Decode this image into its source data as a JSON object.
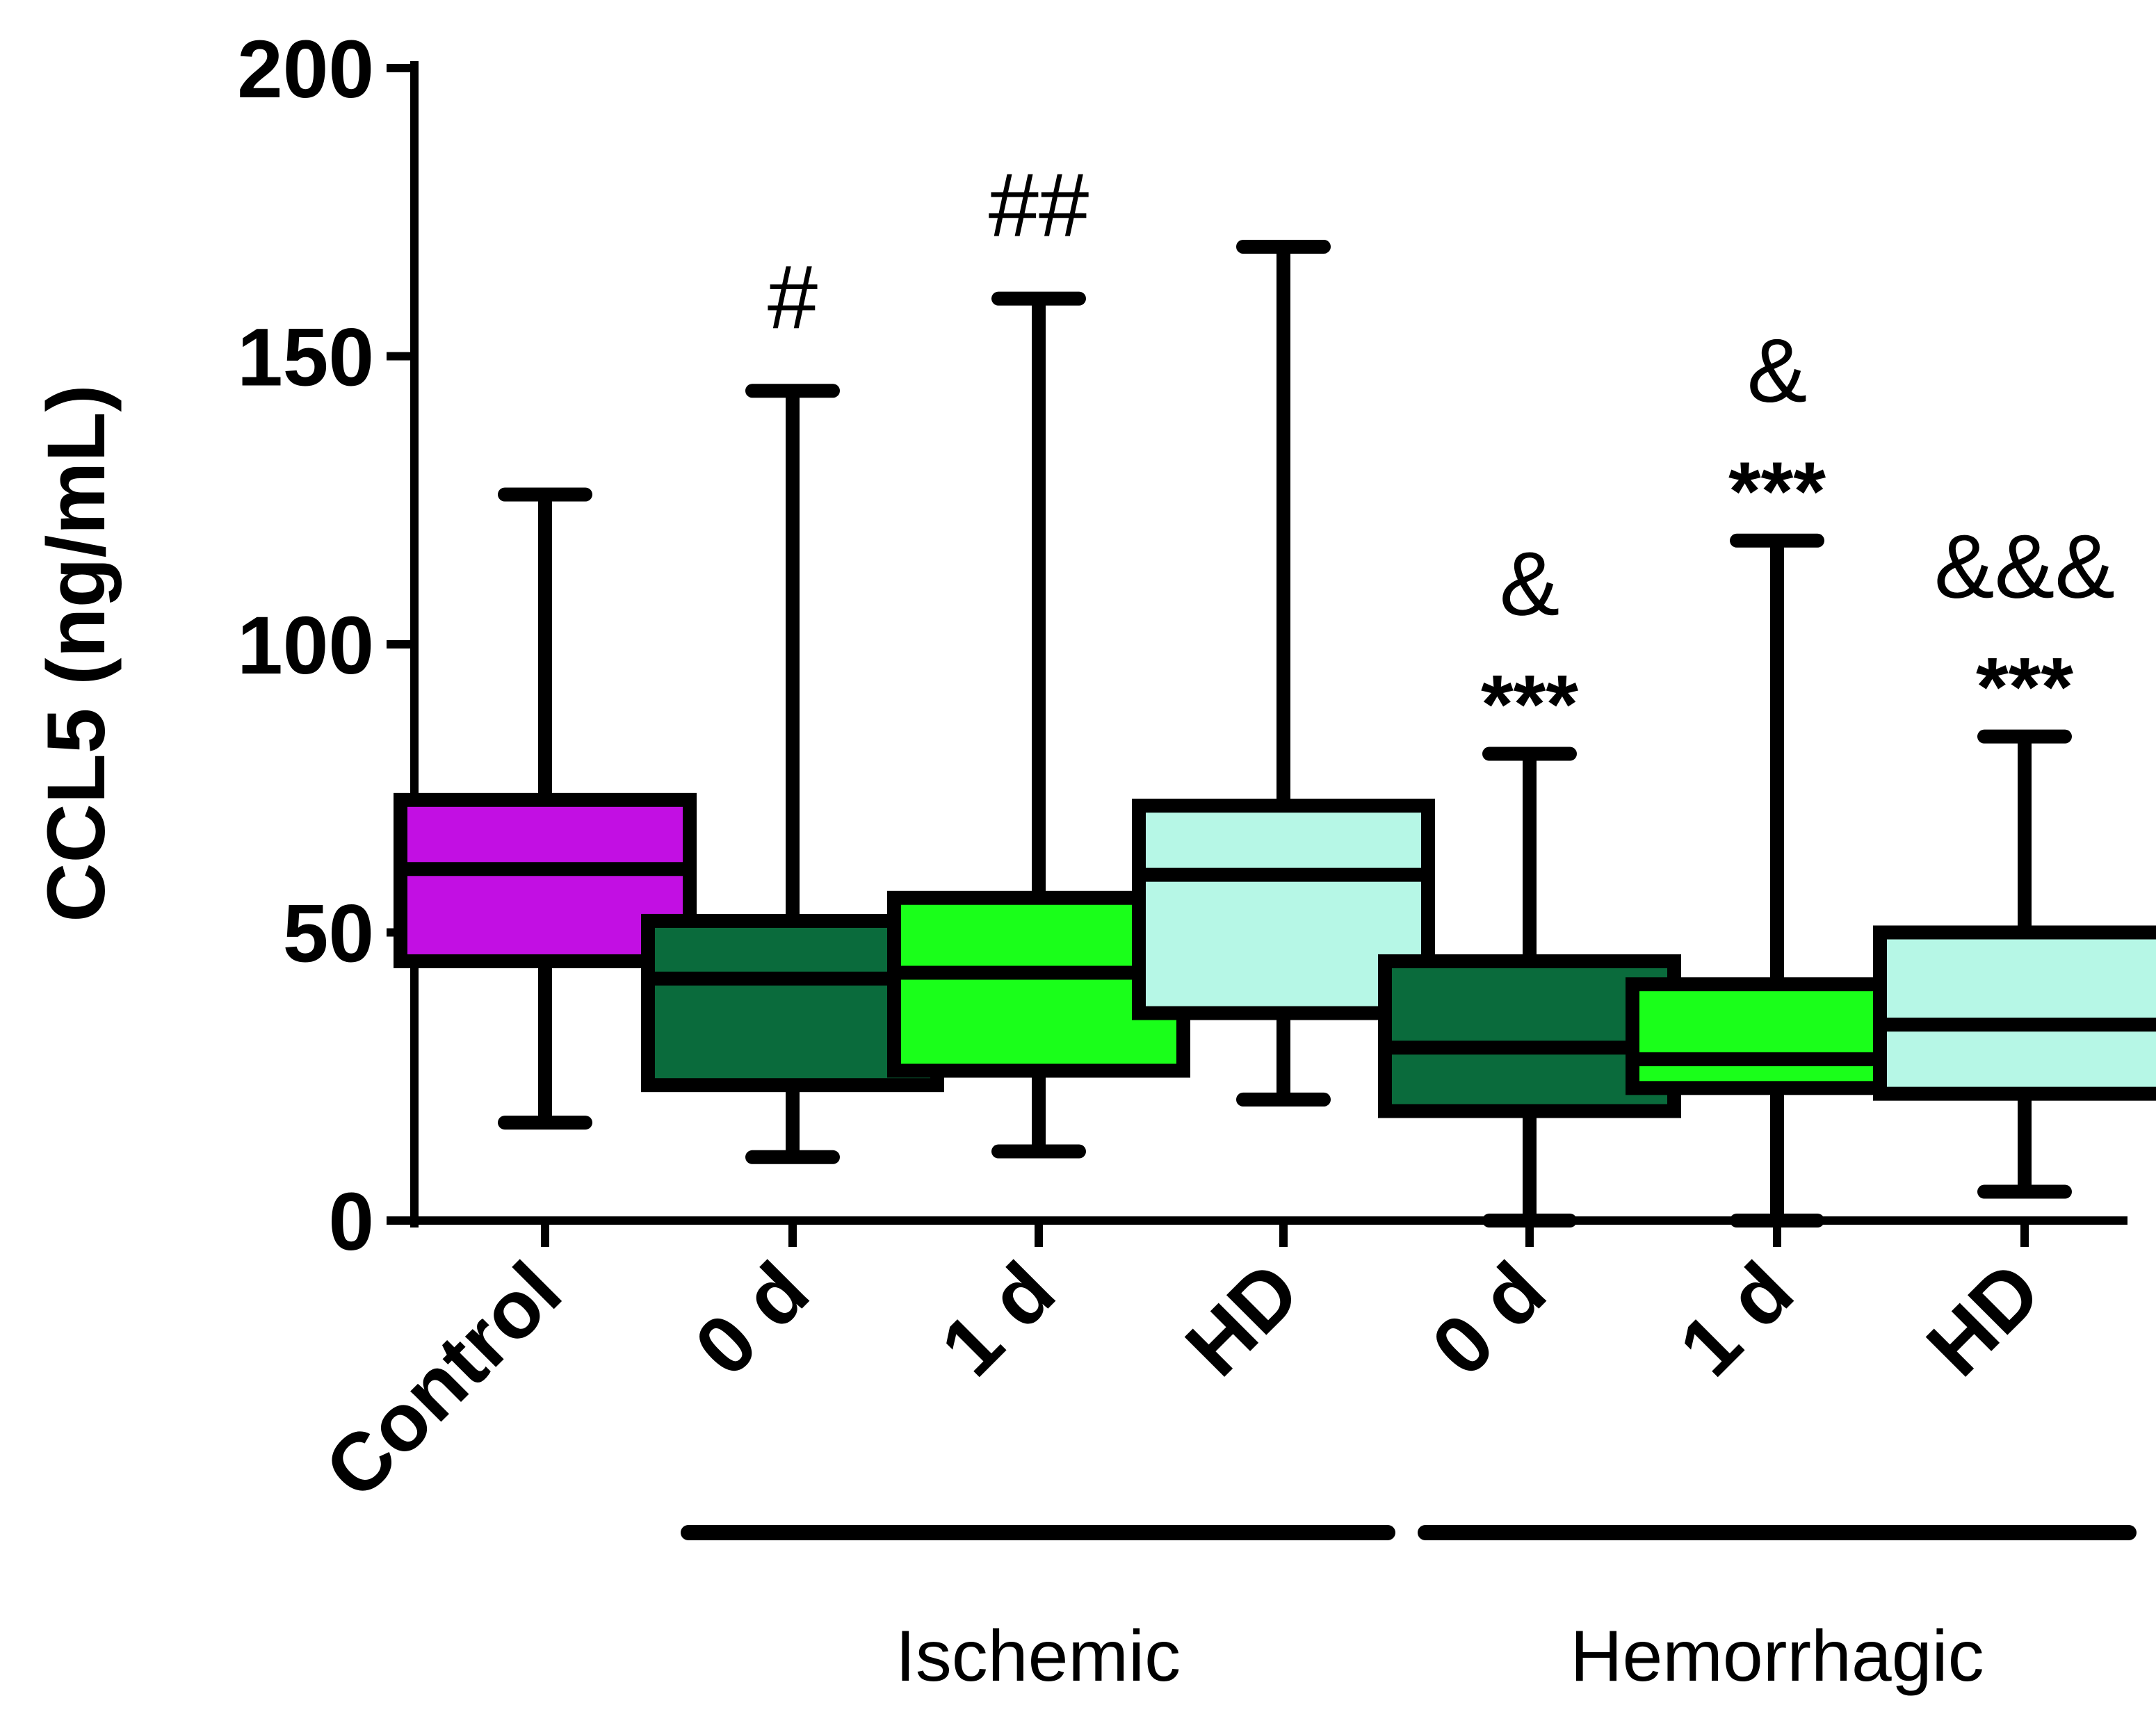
{
  "chart_data": {
    "type": "box",
    "ylabel": "CCL5 (ng/mL)",
    "ylim": [
      0,
      200
    ],
    "yticks": [
      0,
      50,
      100,
      150,
      200
    ],
    "categories": [
      "Control",
      "0 d",
      "1 d",
      "HD",
      "0 d",
      "1 d",
      "HD"
    ],
    "groups": [
      {
        "label": "Ischemic",
        "members": [
          1,
          2,
          3
        ]
      },
      {
        "label": "Hemorrhagic",
        "members": [
          4,
          5,
          6
        ]
      }
    ],
    "boxes": [
      {
        "label": "Control",
        "min": 17,
        "q1": 45,
        "median": 61,
        "q3": 73,
        "max": 126,
        "color": "#c20fe3",
        "annotations": []
      },
      {
        "label": "0 d",
        "group": "Ischemic",
        "min": 11,
        "q1": 23.5,
        "median": 42,
        "q3": 52,
        "max": 144,
        "color": "#0a6b3c",
        "annotations": [
          "#"
        ]
      },
      {
        "label": "1 d",
        "group": "Ischemic",
        "min": 12,
        "q1": 26,
        "median": 43,
        "q3": 56,
        "max": 160,
        "color": "#1aff1a",
        "annotations": [
          "##"
        ]
      },
      {
        "label": "HD",
        "group": "Ischemic",
        "min": 21,
        "q1": 36,
        "median": 60,
        "q3": 72,
        "max": 169,
        "color": "#b6f7e6",
        "annotations": []
      },
      {
        "label": "0 d",
        "group": "Hemorrhagic",
        "min": 0,
        "q1": 19,
        "median": 30,
        "q3": 45,
        "max": 81,
        "color": "#0a6b3c",
        "annotations": [
          "***",
          "&"
        ]
      },
      {
        "label": "1 d",
        "group": "Hemorrhagic",
        "min": 0,
        "q1": 23,
        "median": 28,
        "q3": 41,
        "max": 118,
        "color": "#1aff1a",
        "annotations": [
          "***",
          "&"
        ]
      },
      {
        "label": "HD",
        "group": "Hemorrhagic",
        "min": 5,
        "q1": 22,
        "median": 34,
        "q3": 50,
        "max": 84,
        "color": "#b6f7e6",
        "annotations": [
          "***",
          "&&&"
        ]
      }
    ]
  }
}
